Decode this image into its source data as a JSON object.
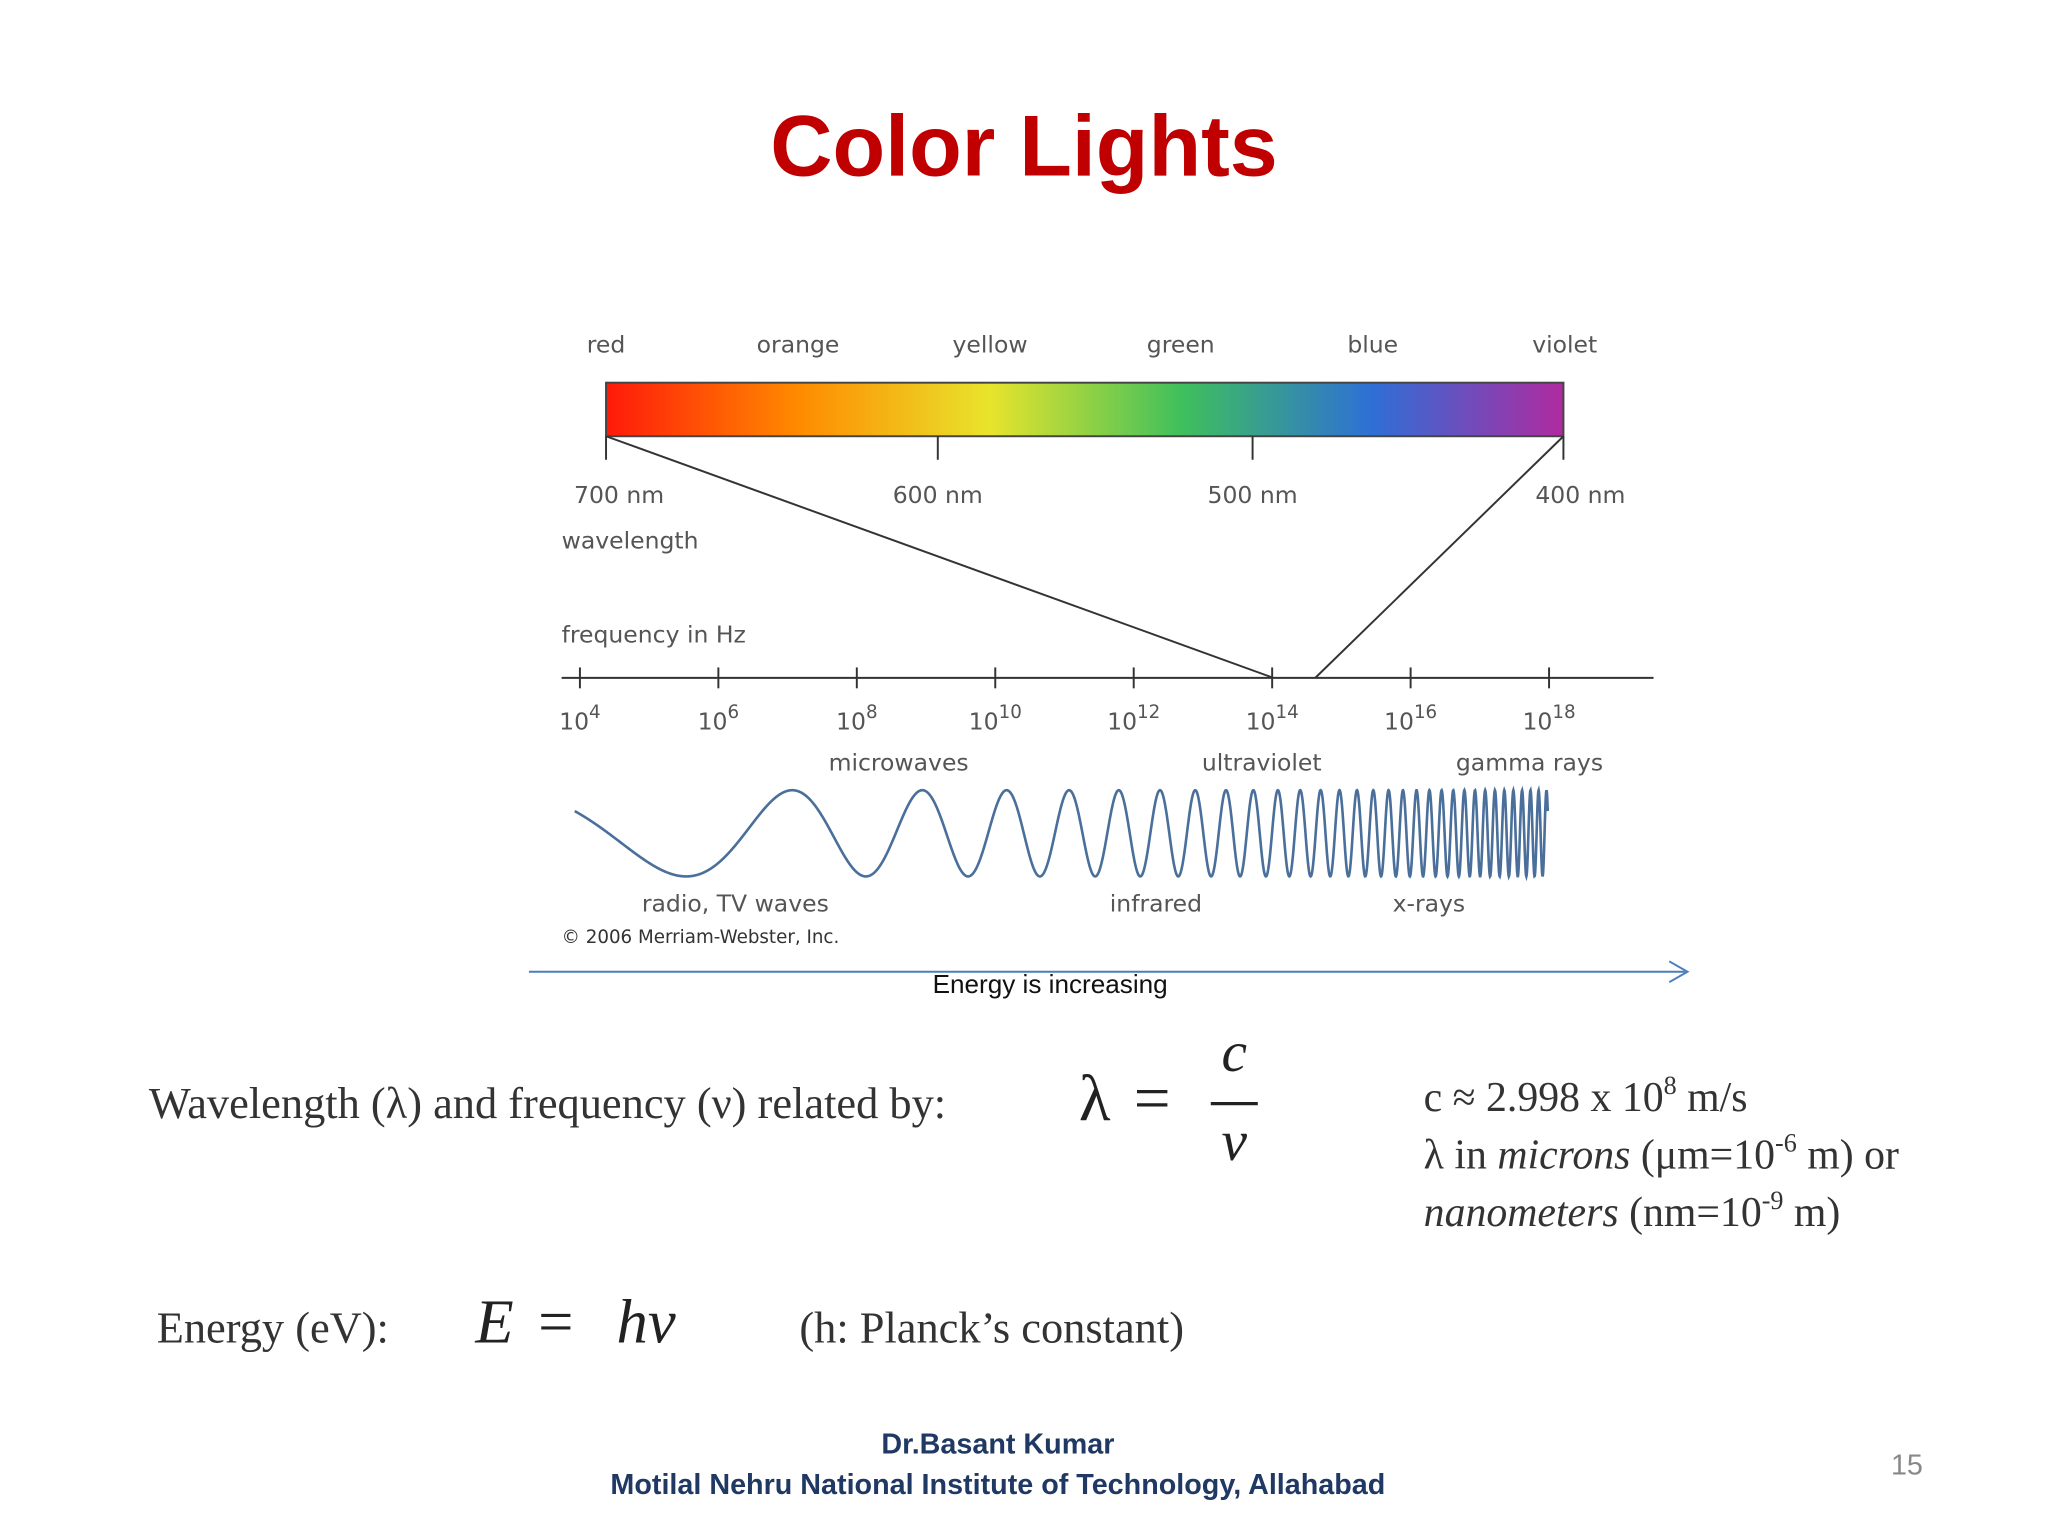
{
  "header": {
    "title": "Color Lights"
  },
  "spectrum": {
    "colors": [
      "red",
      "orange",
      "yellow",
      "green",
      "blue",
      "violet"
    ],
    "wavelengths": [
      "700 nm",
      "600 nm",
      "500 nm",
      "400 nm"
    ],
    "wavelength_label": "wavelength",
    "frequency_label": "frequency in Hz",
    "frequency_ticks": [
      {
        "base": "10",
        "exponent": "4"
      },
      {
        "base": "10",
        "exponent": "6"
      },
      {
        "base": "10",
        "exponent": "8"
      },
      {
        "base": "10",
        "exponent": "10"
      },
      {
        "base": "10",
        "exponent": "12"
      },
      {
        "base": "10",
        "exponent": "14"
      },
      {
        "base": "10",
        "exponent": "16"
      },
      {
        "base": "10",
        "exponent": "18"
      }
    ],
    "upper_bands": [
      "microwaves",
      "ultraviolet",
      "gamma rays"
    ],
    "lower_bands": [
      "radio, TV waves",
      "infrared",
      "x-rays"
    ],
    "copyright": "© 2006 Merriam-Webster, Inc."
  },
  "energy_arrow": "Energy is increasing",
  "relation": {
    "text": "Wavelength (λ) and frequency (ν) related by:",
    "lhs": "λ",
    "equals": "=",
    "numerator": "c",
    "denominator": "ν"
  },
  "notes": [
    [
      {
        "text": "c ≈ 2.998 x 10"
      },
      {
        "text": "8",
        "style": "sup"
      },
      {
        "text": " m/s"
      }
    ],
    [
      {
        "text": "λ in "
      },
      {
        "text": "microns",
        "style": "italic"
      },
      {
        "text": " (μm=10"
      },
      {
        "text": "-6",
        "style": "sup"
      },
      {
        "text": " m) or"
      }
    ],
    [
      {
        "text": "nanometers",
        "style": "italic"
      },
      {
        "text": " (nm=10"
      },
      {
        "text": "-9",
        "style": "sup"
      },
      {
        "text": " m)"
      }
    ]
  ],
  "energy": {
    "label": "Energy (eV):",
    "lhs": "E",
    "equals": "=",
    "rhs": "hν",
    "note": "(h: Planck’s constant)"
  },
  "footer": {
    "author": "Dr.Basant Kumar",
    "institute": "Motilal Nehru National Institute of Technology, Allahabad",
    "page": "15"
  }
}
